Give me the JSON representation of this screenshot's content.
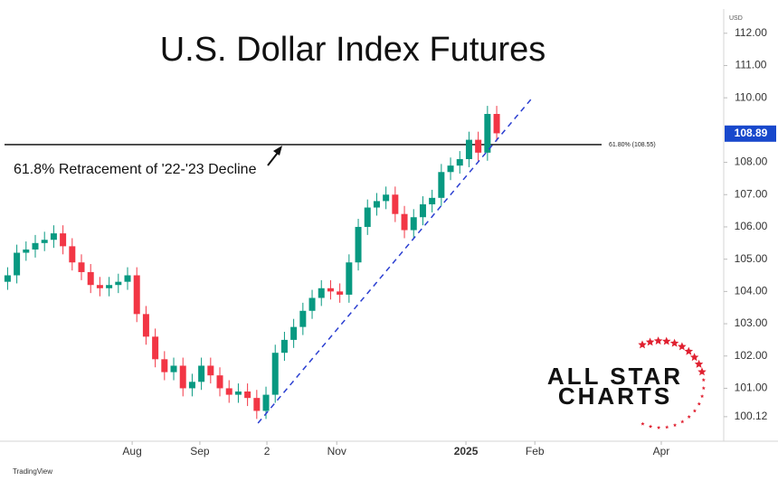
{
  "chart_data": {
    "type": "candlestick",
    "title": "U.S. Dollar Index  Futures",
    "currency": "USD",
    "source": "TradingView",
    "logo": [
      "ALL STAR",
      "CHARTS"
    ],
    "annotation": "61.8% Retracement of '22-'23 Decline",
    "up_color": "#089981",
    "down_color": "#f23645",
    "x": [
      1,
      4,
      7,
      10,
      13,
      16,
      19,
      22,
      25,
      28,
      31,
      34,
      37,
      40,
      43,
      46,
      49,
      52,
      55,
      58,
      61,
      64,
      67,
      70,
      73,
      76,
      79,
      82,
      85,
      88,
      91,
      94,
      97,
      100,
      103,
      106,
      109,
      112,
      115,
      118,
      121,
      124,
      127,
      130,
      133,
      136,
      139,
      142,
      145,
      148,
      151,
      154,
      157,
      160
    ],
    "open": [
      104.3,
      104.5,
      105.2,
      105.3,
      105.5,
      105.6,
      105.8,
      105.4,
      104.9,
      104.6,
      104.2,
      104.1,
      104.2,
      104.3,
      104.5,
      103.3,
      102.6,
      101.9,
      101.5,
      101.7,
      101.0,
      101.2,
      101.7,
      101.4,
      101.0,
      100.8,
      100.9,
      100.7,
      100.3,
      100.8,
      102.1,
      102.5,
      102.9,
      103.4,
      103.8,
      104.1,
      104.0,
      103.9,
      104.9,
      106.0,
      106.6,
      106.8,
      107.0,
      106.4,
      105.9,
      106.3,
      106.7,
      106.9,
      107.7,
      107.9,
      108.1,
      108.7,
      108.3,
      109.5
    ],
    "high": [
      104.75,
      105.45,
      105.55,
      105.75,
      105.85,
      106.05,
      106.05,
      105.65,
      105.15,
      104.85,
      104.45,
      104.45,
      104.55,
      104.75,
      104.75,
      103.55,
      102.85,
      102.15,
      101.95,
      101.95,
      101.45,
      101.95,
      101.95,
      101.65,
      101.25,
      101.15,
      101.15,
      100.95,
      101.05,
      102.35,
      102.75,
      103.15,
      103.65,
      104.05,
      104.35,
      104.35,
      104.25,
      105.15,
      106.25,
      106.85,
      107.05,
      107.25,
      107.25,
      106.65,
      106.55,
      106.95,
      107.15,
      107.95,
      108.15,
      108.35,
      108.95,
      108.95,
      109.75,
      109.75
    ],
    "low": [
      104.05,
      104.25,
      104.95,
      105.05,
      105.25,
      105.35,
      105.15,
      104.65,
      104.35,
      103.95,
      103.85,
      103.85,
      103.95,
      104.05,
      103.05,
      102.35,
      101.65,
      101.25,
      101.25,
      100.75,
      100.75,
      100.95,
      101.15,
      100.75,
      100.55,
      100.55,
      100.45,
      100.05,
      100.05,
      100.55,
      101.85,
      102.25,
      102.65,
      103.15,
      103.55,
      103.75,
      103.65,
      103.65,
      104.65,
      105.75,
      106.35,
      106.55,
      106.15,
      105.65,
      105.65,
      106.05,
      106.45,
      106.65,
      107.45,
      107.65,
      107.85,
      108.05,
      108.05,
      108.65
    ],
    "close": [
      104.5,
      105.2,
      105.3,
      105.5,
      105.6,
      105.8,
      105.4,
      104.9,
      104.6,
      104.2,
      104.1,
      104.2,
      104.3,
      104.5,
      103.3,
      102.6,
      101.9,
      101.5,
      101.7,
      101.0,
      101.2,
      101.7,
      101.4,
      101.0,
      100.8,
      100.9,
      100.7,
      100.3,
      100.8,
      102.1,
      102.5,
      102.9,
      103.4,
      103.8,
      104.1,
      104.0,
      103.9,
      104.9,
      106.0,
      106.6,
      106.8,
      107.0,
      106.4,
      105.9,
      106.3,
      106.7,
      106.9,
      107.7,
      107.9,
      108.1,
      108.7,
      108.3,
      109.5,
      108.9
    ],
    "level": {
      "value": 108.55,
      "label": "61.80% (108.55)",
      "color": "#000000"
    },
    "last_price": {
      "value": 108.89,
      "label": "108.89",
      "color": "#1848cc"
    },
    "trendline": {
      "x": [
        82.4,
        172
      ],
      "y": [
        99.92,
        110.05
      ],
      "color": "#2b3fd1"
    },
    "xlim": [
      0,
      233.8
    ],
    "ylim": [
      99.36,
      112.75
    ],
    "xticks": [
      {
        "value": 41.5,
        "label": "Aug"
      },
      {
        "value": 63.5,
        "label": "Sep"
      },
      {
        "value": 85.3,
        "label": "2"
      },
      {
        "value": 108,
        "label": "Nov"
      },
      {
        "value": 150,
        "label": "2025"
      },
      {
        "value": 172.4,
        "label": "Feb"
      },
      {
        "value": 213.5,
        "label": "Apr"
      }
    ],
    "yticks": [
      {
        "value": 112,
        "label": "112.00"
      },
      {
        "value": 111,
        "label": "111.00"
      },
      {
        "value": 110,
        "label": "110.00"
      },
      {
        "value": 108,
        "label": "108.00"
      },
      {
        "value": 107,
        "label": "107.00"
      },
      {
        "value": 106,
        "label": "106.00"
      },
      {
        "value": 105,
        "label": "105.00"
      },
      {
        "value": 104,
        "label": "104.00"
      },
      {
        "value": 103,
        "label": "103.00"
      },
      {
        "value": 102,
        "label": "102.00"
      },
      {
        "value": 101,
        "label": "101.00"
      },
      {
        "value": 100.12,
        "label": "100.12"
      }
    ]
  }
}
